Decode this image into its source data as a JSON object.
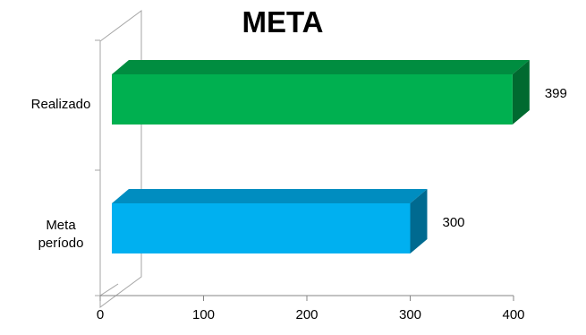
{
  "chart_data": {
    "type": "bar",
    "orientation": "horizontal",
    "style": "3d",
    "title": "META",
    "categories": [
      [
        "Realizado"
      ],
      [
        "Meta",
        "período"
      ]
    ],
    "values": [
      399,
      300
    ],
    "data_labels": [
      "399",
      "300"
    ],
    "colors": [
      "#00b050",
      "#00b0f0"
    ],
    "xlim": [
      0,
      400
    ],
    "xticks": [
      "0",
      "100",
      "200",
      "300",
      "400"
    ],
    "grid": false,
    "legend": "none"
  }
}
